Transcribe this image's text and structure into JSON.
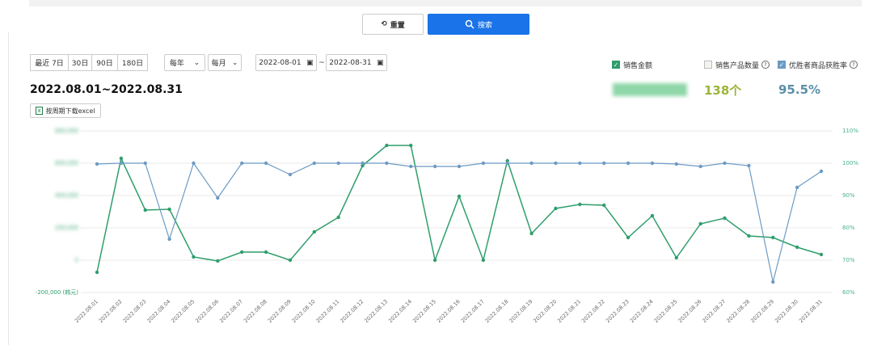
{
  "toolbar": {
    "reset": "重置",
    "search": "搜索"
  },
  "filters": {
    "ranges": [
      "最近 7日",
      "30日",
      "90日",
      "180日"
    ],
    "year_select": "每年",
    "month_select": "每月",
    "date_from": "2022-08-01",
    "date_sep": "~",
    "date_to": "2022-08-31"
  },
  "period_title": "2022.08.01~2022.08.31",
  "download": "按周期下载excel",
  "metrics": {
    "product_count": {
      "label": "销售产品数量",
      "checked": false,
      "total": "138个"
    },
    "win_rate_total": "95.5%"
  },
  "chart_data": {
    "type": "line",
    "x": [
      "2022.08.01",
      "2022.08.02",
      "2022.08.03",
      "2022.08.04",
      "2022.08.05",
      "2022.08.06",
      "2022.08.07",
      "2022.08.08",
      "2022.08.09",
      "2022.08.10",
      "2022.08.11",
      "2022.08.12",
      "2022.08.13",
      "2022.08.14",
      "2022.08.15",
      "2022.08.16",
      "2022.08.17",
      "2022.08.18",
      "2022.08.19",
      "2022.08.20",
      "2022.08.21",
      "2022.08.22",
      "2022.08.23",
      "2022.08.24",
      "2022.08.25",
      "2022.08.26",
      "2022.08.27",
      "2022.08.28",
      "2022.08.29",
      "2022.08.30",
      "2022.08.31"
    ],
    "series": [
      {
        "name": "销售金额",
        "color": "#2e9e6b",
        "checked": true,
        "values": [
          -75000,
          630000,
          310000,
          315000,
          20000,
          -5000,
          50000,
          50000,
          0,
          175000,
          265000,
          585000,
          710000,
          710000,
          0,
          395000,
          0,
          615000,
          165000,
          320000,
          345000,
          340000,
          140000,
          275000,
          15000,
          225000,
          260000,
          150000,
          140000,
          80000,
          35000
        ]
      },
      {
        "name": "优胜者商品获胜率",
        "color": "#6c9bc4",
        "checked": true,
        "axis": "y2",
        "values": [
          99.75,
          100,
          100,
          76.5,
          100,
          89.25,
          100,
          100,
          96.5,
          100,
          100,
          100,
          100,
          99,
          99,
          99,
          100,
          100,
          100,
          100,
          100,
          100,
          100,
          100,
          99.75,
          99,
          100,
          99.25,
          63.25,
          92.5,
          97.5
        ]
      }
    ],
    "ylim": [
      -200000,
      800000
    ],
    "yticks": [
      {
        "value": -200000,
        "label": "-200,000 (韩元)"
      },
      {
        "value": 0,
        "label": "0"
      },
      {
        "value": 200000,
        "label": "200,000"
      },
      {
        "value": 400000,
        "label": "400,000"
      },
      {
        "value": 600000,
        "label": "600,000"
      },
      {
        "value": 800000,
        "label": "800,000"
      }
    ],
    "y2lim": [
      60,
      110
    ],
    "y2ticks": [
      {
        "value": 60,
        "label": "60%"
      },
      {
        "value": 70,
        "label": "70%"
      },
      {
        "value": 80,
        "label": "80%"
      },
      {
        "value": 90,
        "label": "90%"
      },
      {
        "value": 100,
        "label": "100%"
      },
      {
        "value": 110,
        "label": "110%"
      }
    ],
    "grid": true
  }
}
